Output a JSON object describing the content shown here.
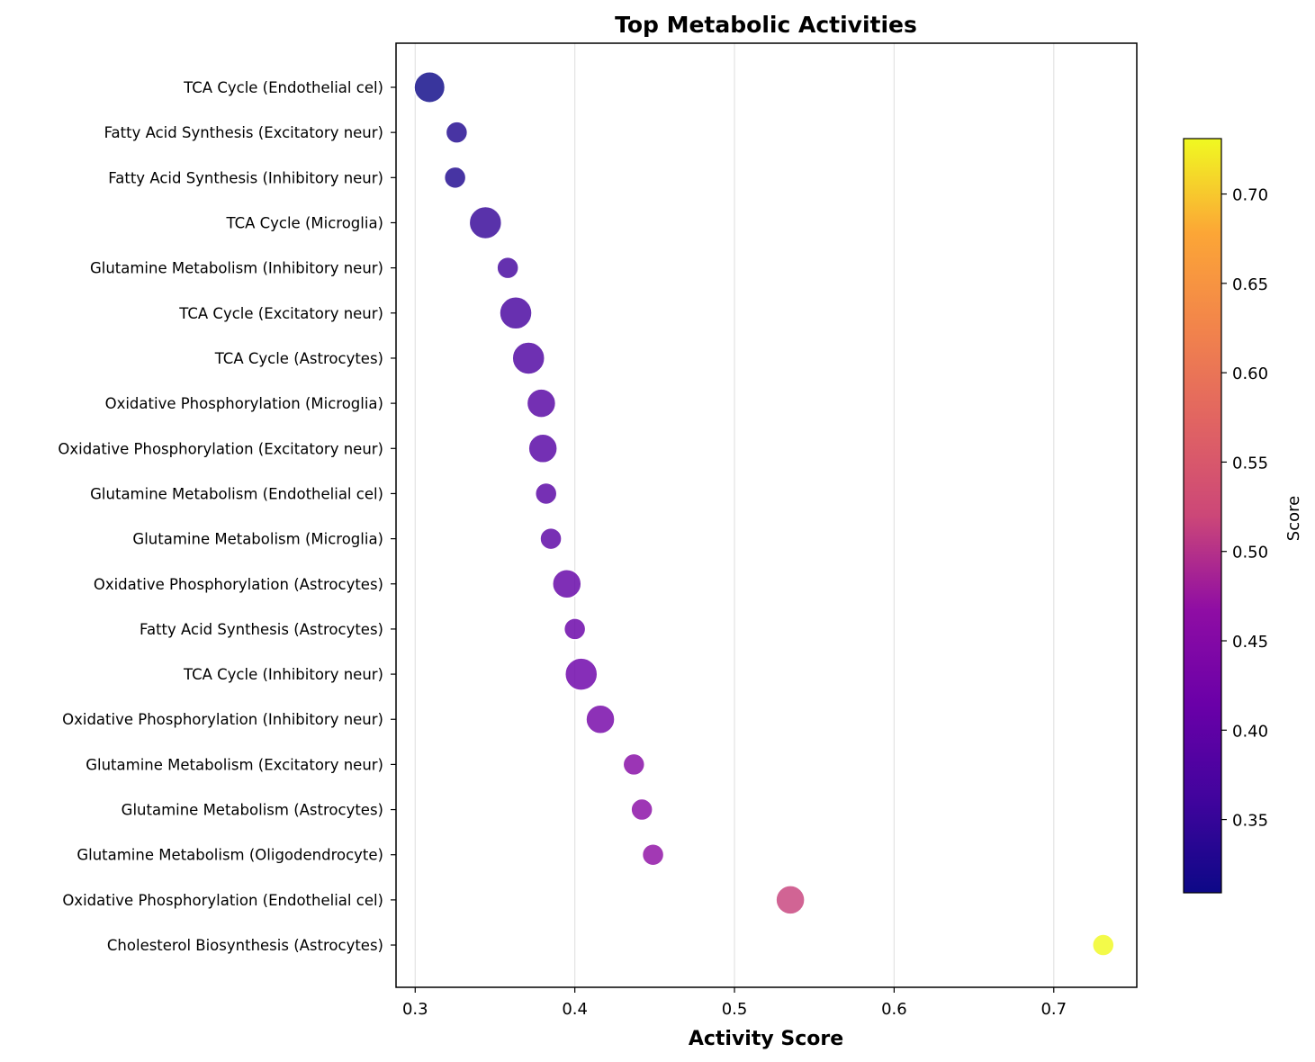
{
  "chart_data": {
    "type": "scatter",
    "title": "Top Metabolic Activities",
    "xlabel": "Activity Score",
    "xlim": [
      0.288,
      0.752
    ],
    "xticks": [
      0.3,
      0.4,
      0.5,
      0.6,
      0.7
    ],
    "xtick_labels": [
      "0.3",
      "0.4",
      "0.5",
      "0.6",
      "0.7"
    ],
    "grid": "vertical",
    "colormap": "plasma",
    "categories": [
      "TCA Cycle (Endothelial cel)",
      "Fatty Acid Synthesis (Excitatory neur)",
      "Fatty Acid Synthesis (Inhibitory neur)",
      "TCA Cycle (Microglia)",
      "Glutamine Metabolism (Inhibitory neur)",
      "TCA Cycle (Excitatory neur)",
      "TCA Cycle (Astrocytes)",
      "Oxidative Phosphorylation (Microglia)",
      "Oxidative Phosphorylation (Excitatory neur)",
      "Glutamine Metabolism (Endothelial cel)",
      "Glutamine Metabolism (Microglia)",
      "Oxidative Phosphorylation (Astrocytes)",
      "Fatty Acid Synthesis (Astrocytes)",
      "TCA Cycle (Inhibitory neur)",
      "Oxidative Phosphorylation (Inhibitory neur)",
      "Glutamine Metabolism (Excitatory neur)",
      "Glutamine Metabolism (Astrocytes)",
      "Glutamine Metabolism (Oligodendrocyte)",
      "Oxidative Phosphorylation (Endothelial cel)",
      "Cholesterol Biosynthesis (Astrocytes)"
    ],
    "values": [
      0.309,
      0.326,
      0.325,
      0.344,
      0.358,
      0.363,
      0.371,
      0.379,
      0.38,
      0.382,
      0.385,
      0.395,
      0.4,
      0.404,
      0.416,
      0.437,
      0.442,
      0.449,
      0.535,
      0.731
    ],
    "colorbar": {
      "label": "Score",
      "range": [
        0.309,
        0.731
      ],
      "ticks": [
        0.35,
        0.4,
        0.45,
        0.5,
        0.55,
        0.6,
        0.65,
        0.7
      ],
      "tick_labels": [
        "0.35",
        "0.40",
        "0.45",
        "0.50",
        "0.55",
        "0.60",
        "0.65",
        "0.70"
      ]
    },
    "marker_color_values": [
      0.309,
      0.326,
      0.325,
      0.344,
      0.358,
      0.363,
      0.371,
      0.379,
      0.38,
      0.382,
      0.385,
      0.395,
      0.4,
      0.404,
      0.416,
      0.437,
      0.442,
      0.449,
      0.535,
      0.731
    ],
    "marker_size_weights": [
      2.8,
      1.5,
      1.5,
      3.0,
      1.5,
      3.0,
      3.0,
      2.5,
      2.5,
      1.5,
      1.5,
      2.5,
      1.5,
      3.0,
      2.5,
      1.5,
      1.5,
      1.5,
      2.5,
      1.5
    ]
  }
}
